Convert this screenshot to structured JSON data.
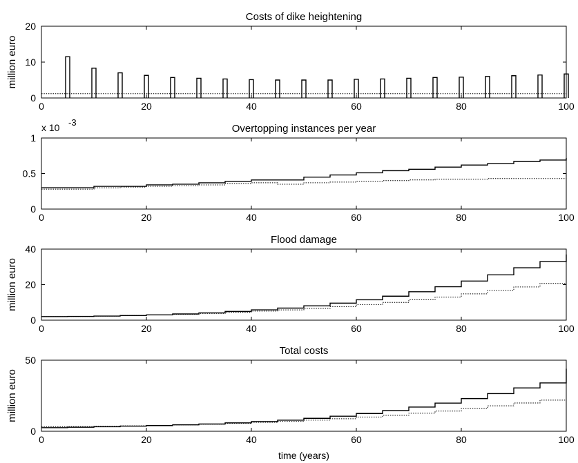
{
  "chart_data": [
    {
      "type": "bar",
      "title": "Costs of dike heightening",
      "xlabel": "",
      "ylabel": "million euro",
      "xlim": [
        0,
        100
      ],
      "ylim": [
        0,
        20
      ],
      "xticks": [
        "0",
        "20",
        "40",
        "60",
        "80",
        "100"
      ],
      "yticks": [
        "0",
        "10",
        "20"
      ],
      "categories": [
        5,
        10,
        15,
        20,
        25,
        30,
        35,
        40,
        45,
        50,
        55,
        60,
        65,
        70,
        75,
        80,
        85,
        90,
        95,
        100
      ],
      "series": [
        {
          "style": "solid",
          "values": [
            11.5,
            8.3,
            7.0,
            6.3,
            5.7,
            5.5,
            5.3,
            5.1,
            5.0,
            5.0,
            5.0,
            5.2,
            5.3,
            5.5,
            5.7,
            5.8,
            6.0,
            6.2,
            6.4,
            6.7
          ]
        },
        {
          "style": "dotted",
          "x": [
            0,
            100
          ],
          "values": [
            1.2,
            1.2
          ]
        }
      ]
    },
    {
      "type": "line",
      "title": "Overtopping instances per year",
      "xlabel": "",
      "ylabel": "",
      "y_scale_factor": "x 10",
      "y_scale_exponent": "-3",
      "xlim": [
        0,
        100
      ],
      "ylim": [
        0,
        1
      ],
      "xticks": [
        "0",
        "20",
        "40",
        "60",
        "80",
        "100"
      ],
      "yticks": [
        "0",
        "0.5",
        "1"
      ],
      "series": [
        {
          "style": "solid",
          "x": [
            0,
            5,
            10,
            15,
            20,
            25,
            30,
            35,
            40,
            45,
            50,
            55,
            60,
            65,
            70,
            75,
            80,
            85,
            90,
            95,
            100
          ],
          "values": [
            0.3,
            0.3,
            0.32,
            0.32,
            0.34,
            0.35,
            0.37,
            0.39,
            0.41,
            0.41,
            0.45,
            0.48,
            0.51,
            0.54,
            0.56,
            0.59,
            0.62,
            0.64,
            0.67,
            0.69,
            0.72
          ]
        },
        {
          "style": "dotted",
          "x": [
            0,
            5,
            10,
            15,
            20,
            25,
            30,
            35,
            40,
            45,
            50,
            55,
            60,
            65,
            70,
            75,
            80,
            85,
            90,
            95,
            100
          ],
          "values": [
            0.28,
            0.28,
            0.3,
            0.31,
            0.32,
            0.33,
            0.34,
            0.36,
            0.37,
            0.35,
            0.37,
            0.38,
            0.39,
            0.4,
            0.41,
            0.42,
            0.42,
            0.43,
            0.43,
            0.43,
            0.44
          ]
        }
      ]
    },
    {
      "type": "line",
      "title": "Flood damage",
      "xlabel": "",
      "ylabel": "million euro",
      "xlim": [
        0,
        100
      ],
      "ylim": [
        0,
        40
      ],
      "xticks": [
        "0",
        "20",
        "40",
        "60",
        "80",
        "100"
      ],
      "yticks": [
        "0",
        "20",
        "40"
      ],
      "series": [
        {
          "style": "solid",
          "x": [
            0,
            5,
            10,
            15,
            20,
            25,
            30,
            35,
            40,
            45,
            50,
            55,
            60,
            65,
            70,
            75,
            80,
            85,
            90,
            95,
            100
          ],
          "values": [
            2.0,
            2.1,
            2.3,
            2.6,
            3.0,
            3.5,
            4.1,
            4.9,
            5.8,
            6.8,
            8.1,
            9.6,
            11.5,
            13.5,
            16.0,
            18.8,
            22.0,
            25.5,
            29.5,
            33.0,
            37.0
          ]
        },
        {
          "style": "dotted",
          "x": [
            0,
            5,
            10,
            15,
            20,
            25,
            30,
            35,
            40,
            45,
            50,
            55,
            60,
            65,
            70,
            75,
            80,
            85,
            90,
            95,
            100
          ],
          "values": [
            2.0,
            2.1,
            2.3,
            2.6,
            2.9,
            3.3,
            3.8,
            4.4,
            5.1,
            5.8,
            6.6,
            7.6,
            8.8,
            10.0,
            11.5,
            13.0,
            14.8,
            16.7,
            18.7,
            20.7,
            23.0
          ]
        }
      ]
    },
    {
      "type": "line",
      "title": "Total costs",
      "xlabel": "time (years)",
      "ylabel": "million euro",
      "xlim": [
        0,
        100
      ],
      "ylim": [
        0,
        50
      ],
      "xticks": [
        "0",
        "20",
        "40",
        "60",
        "80",
        "100"
      ],
      "yticks": [
        "0",
        "50"
      ],
      "series": [
        {
          "style": "solid",
          "x": [
            0,
            5,
            10,
            15,
            20,
            25,
            30,
            35,
            40,
            45,
            50,
            55,
            60,
            65,
            70,
            75,
            80,
            85,
            90,
            95,
            100
          ],
          "values": [
            2.5,
            2.8,
            3.2,
            3.6,
            4.0,
            4.5,
            5.1,
            5.9,
            6.8,
            7.8,
            9.1,
            10.6,
            12.5,
            14.5,
            17.0,
            19.8,
            23.0,
            26.5,
            30.5,
            34.0,
            44.0
          ]
        },
        {
          "style": "dotted",
          "x": [
            0,
            5,
            10,
            15,
            20,
            25,
            30,
            35,
            40,
            45,
            50,
            55,
            60,
            65,
            70,
            75,
            80,
            85,
            90,
            95,
            100
          ],
          "values": [
            3.2,
            3.3,
            3.5,
            3.8,
            4.1,
            4.5,
            5.0,
            5.6,
            6.3,
            7.0,
            7.8,
            8.8,
            10.0,
            11.2,
            12.7,
            14.2,
            16.0,
            17.9,
            19.9,
            21.9,
            24.2
          ]
        }
      ]
    }
  ]
}
